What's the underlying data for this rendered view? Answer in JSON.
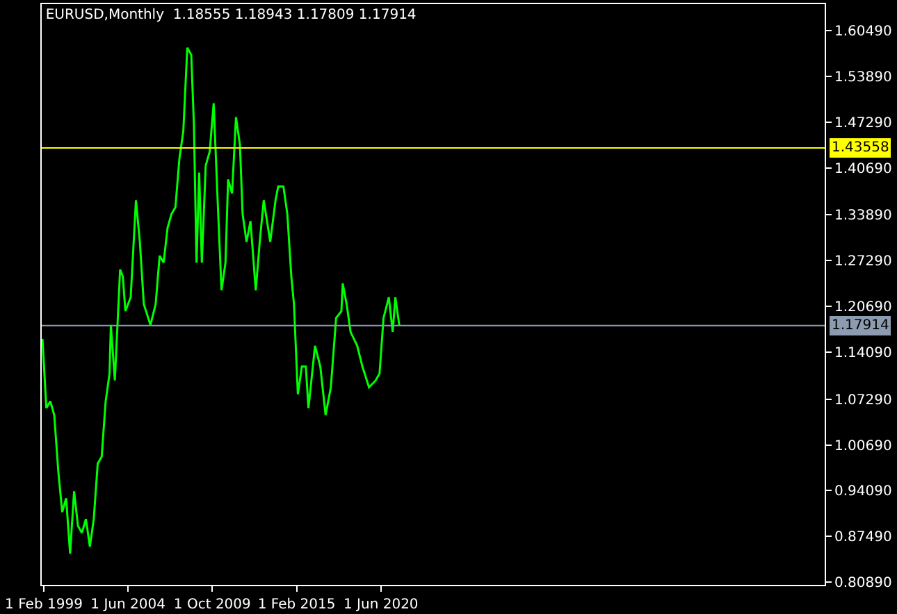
{
  "chart_data": {
    "type": "line",
    "title": "EURUSD,Monthly  1.18555 1.18943 1.17809 1.17914",
    "x": [
      "1999-01",
      "1999-04",
      "1999-07",
      "1999-10",
      "2000-01",
      "2000-04",
      "2000-07",
      "2000-10",
      "2001-01",
      "2001-04",
      "2001-07",
      "2001-10",
      "2002-01",
      "2002-04",
      "2002-07",
      "2002-10",
      "2003-01",
      "2003-04",
      "2003-05",
      "2003-08",
      "2003-12",
      "2004-02",
      "2004-04",
      "2004-08",
      "2004-12",
      "2005-03",
      "2005-06",
      "2005-11",
      "2006-03",
      "2006-06",
      "2006-09",
      "2006-12",
      "2007-03",
      "2007-06",
      "2007-09",
      "2007-12",
      "2008-03",
      "2008-06",
      "2008-08",
      "2008-10",
      "2008-12",
      "2009-02",
      "2009-05",
      "2009-08",
      "2009-11",
      "2010-02",
      "2010-05",
      "2010-08",
      "2010-10",
      "2011-01",
      "2011-04",
      "2011-07",
      "2011-09",
      "2011-12",
      "2012-03",
      "2012-07",
      "2012-10",
      "2013-01",
      "2013-06",
      "2013-10",
      "2013-12",
      "2014-04",
      "2014-07",
      "2014-10",
      "2014-12",
      "2015-03",
      "2015-06",
      "2015-09",
      "2015-11",
      "2016-04",
      "2016-08",
      "2016-12",
      "2017-04",
      "2017-08",
      "2017-12",
      "2018-01",
      "2018-04",
      "2018-07",
      "2018-12",
      "2019-04",
      "2019-09",
      "2020-02",
      "2020-05",
      "2020-08",
      "2020-12",
      "2021-03",
      "2021-05",
      "2021-08"
    ],
    "series": [
      {
        "color": "#00ff00",
        "values": [
          1.16,
          1.06,
          1.07,
          1.05,
          0.97,
          0.91,
          0.93,
          0.85,
          0.94,
          0.89,
          0.88,
          0.9,
          0.86,
          0.9,
          0.98,
          0.99,
          1.07,
          1.11,
          1.18,
          1.1,
          1.26,
          1.25,
          1.2,
          1.22,
          1.36,
          1.3,
          1.21,
          1.18,
          1.21,
          1.28,
          1.27,
          1.32,
          1.34,
          1.35,
          1.42,
          1.46,
          1.58,
          1.57,
          1.47,
          1.27,
          1.4,
          1.27,
          1.41,
          1.43,
          1.5,
          1.36,
          1.23,
          1.27,
          1.39,
          1.37,
          1.48,
          1.44,
          1.34,
          1.3,
          1.33,
          1.23,
          1.3,
          1.36,
          1.3,
          1.36,
          1.38,
          1.38,
          1.34,
          1.25,
          1.21,
          1.08,
          1.12,
          1.12,
          1.06,
          1.15,
          1.12,
          1.05,
          1.09,
          1.19,
          1.2,
          1.24,
          1.21,
          1.17,
          1.15,
          1.12,
          1.09,
          1.1,
          1.11,
          1.19,
          1.22,
          1.17,
          1.22,
          1.179
        ]
      }
    ],
    "xlim": [
      "1998-12-15",
      "2048-07-01"
    ],
    "xticks": [
      {
        "value": "1999-02-01",
        "label": "1 Feb 1999"
      },
      {
        "value": "2004-06-01",
        "label": "1 Jun 2004"
      },
      {
        "value": "2009-10-01",
        "label": "1 Oct 2009"
      },
      {
        "value": "2015-02-01",
        "label": "1 Feb 2015"
      },
      {
        "value": "2020-06-01",
        "label": "1 Jun 2020"
      }
    ],
    "ylim": [
      0.805,
      1.643
    ],
    "yticks": [
      {
        "value": 1.6049,
        "label": "1.60490"
      },
      {
        "value": 1.5389,
        "label": "1.53890"
      },
      {
        "value": 1.4729,
        "label": "1.47290"
      },
      {
        "value": 1.4069,
        "label": "1.40690"
      },
      {
        "value": 1.3389,
        "label": "1.33890"
      },
      {
        "value": 1.2729,
        "label": "1.27290"
      },
      {
        "value": 1.2069,
        "label": "1.20690"
      },
      {
        "value": 1.1409,
        "label": "1.14090"
      },
      {
        "value": 1.0729,
        "label": "1.07290"
      },
      {
        "value": 1.0069,
        "label": "1.00690"
      },
      {
        "value": 0.9409,
        "label": "0.94090"
      },
      {
        "value": 0.8749,
        "label": "0.87490"
      },
      {
        "value": 0.8089,
        "label": "0.80890"
      }
    ],
    "ref_lines": [
      {
        "axis": "y",
        "value": 1.43558,
        "label": "1.43558",
        "color": "#ffff00"
      },
      {
        "axis": "y",
        "value": 1.17914,
        "label": "1.17914",
        "color": "#8c9bb0"
      }
    ],
    "grid": false
  }
}
